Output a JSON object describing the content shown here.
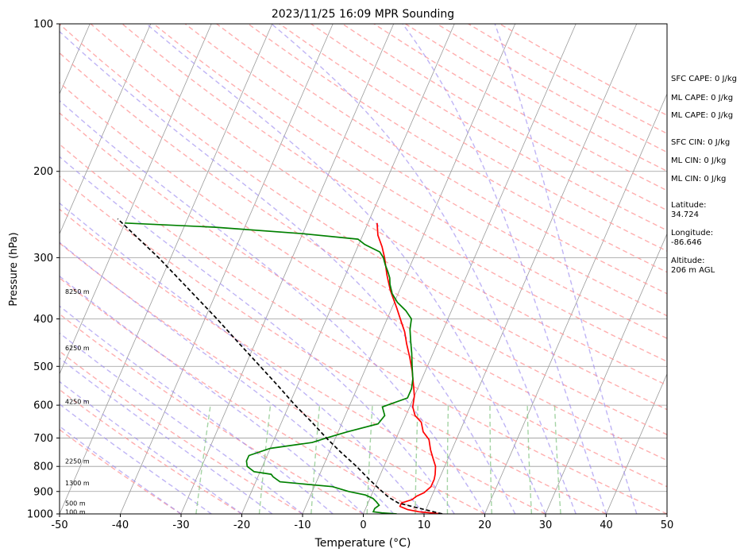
{
  "chart_data": {
    "type": "skew-t sounding",
    "title": "2023/11/25 16:09 MPR Sounding",
    "xlabel": "Temperature (°C)",
    "ylabel": "Pressure (hPa)",
    "xlim": [
      -50,
      50
    ],
    "ylim": [
      1000,
      100
    ],
    "y_scale": "log",
    "x_ticks": [
      "-50",
      "-40",
      "-30",
      "-20",
      "-10",
      "0",
      "10",
      "20",
      "30",
      "40",
      "50"
    ],
    "y_ticks": [
      "100",
      "200",
      "300",
      "400",
      "500",
      "600",
      "700",
      "800",
      "900",
      "1000"
    ],
    "grid": true,
    "colors": {
      "temperature": "#ff0000",
      "dewpoint": "#008000",
      "parcel": "#000000",
      "dry_adiabats": "#ff9a9a",
      "moist_adiabats": "#9c8cf0",
      "mixing_ratio": "#8fc98f",
      "isotherms": "#9a9a9a"
    },
    "height_labels": [
      {
        "text": "8250 m",
        "p": 352
      },
      {
        "text": "6250 m",
        "p": 458
      },
      {
        "text": "4250 m",
        "p": 590
      },
      {
        "text": "2250 m",
        "p": 780
      },
      {
        "text": "1300 m",
        "p": 865
      },
      {
        "text": "500 m",
        "p": 950
      },
      {
        "text": "100 m",
        "p": 990
      }
    ],
    "series": [
      {
        "key": "temperature",
        "points": [
          [
            1000,
            13
          ],
          [
            990,
            9
          ],
          [
            980,
            7
          ],
          [
            965,
            5.5
          ],
          [
            950,
            5.5
          ],
          [
            935,
            7
          ],
          [
            920,
            7.5
          ],
          [
            905,
            8.5
          ],
          [
            880,
            9.2
          ],
          [
            850,
            9.2
          ],
          [
            830,
            9
          ],
          [
            800,
            8.5
          ],
          [
            770,
            7.5
          ],
          [
            740,
            6.5
          ],
          [
            705,
            5.5
          ],
          [
            680,
            4
          ],
          [
            650,
            3
          ],
          [
            630,
            1.5
          ],
          [
            605,
            0.5
          ],
          [
            575,
            0
          ],
          [
            550,
            -0.8
          ],
          [
            530,
            -1.5
          ],
          [
            510,
            -2.2
          ],
          [
            480,
            -3.5
          ],
          [
            450,
            -5
          ],
          [
            425,
            -6.2
          ],
          [
            405,
            -7.5
          ],
          [
            380,
            -9.2
          ],
          [
            350,
            -11.5
          ],
          [
            325,
            -13.2
          ],
          [
            300,
            -14.8
          ],
          [
            285,
            -16
          ],
          [
            270,
            -17.5
          ],
          [
            255,
            -18.5
          ]
        ]
      },
      {
        "key": "dewpoint",
        "points": [
          [
            1000,
            5.5
          ],
          [
            995,
            3
          ],
          [
            990,
            1.5
          ],
          [
            975,
            1.5
          ],
          [
            960,
            2
          ],
          [
            945,
            1.3
          ],
          [
            930,
            0.5
          ],
          [
            915,
            -1
          ],
          [
            900,
            -4
          ],
          [
            880,
            -7
          ],
          [
            860,
            -16
          ],
          [
            840,
            -17.5
          ],
          [
            830,
            -18
          ],
          [
            820,
            -21
          ],
          [
            800,
            -22.5
          ],
          [
            780,
            -23
          ],
          [
            760,
            -23
          ],
          [
            735,
            -20
          ],
          [
            715,
            -13.5
          ],
          [
            700,
            -11.5
          ],
          [
            680,
            -8.5
          ],
          [
            655,
            -4
          ],
          [
            630,
            -3.5
          ],
          [
            605,
            -4.5
          ],
          [
            580,
            -1
          ],
          [
            555,
            -1
          ],
          [
            530,
            -1.5
          ],
          [
            500,
            -2.5
          ],
          [
            470,
            -3.5
          ],
          [
            445,
            -4.5
          ],
          [
            420,
            -5.5
          ],
          [
            400,
            -6
          ],
          [
            385,
            -7.5
          ],
          [
            370,
            -9.5
          ],
          [
            355,
            -11
          ],
          [
            340,
            -12
          ],
          [
            330,
            -12.5
          ],
          [
            320,
            -13.3
          ],
          [
            310,
            -14.2
          ],
          [
            300,
            -15
          ],
          [
            292,
            -16
          ],
          [
            287,
            -17.5
          ],
          [
            282,
            -19
          ],
          [
            275,
            -20.5
          ],
          [
            268,
            -30
          ],
          [
            260,
            -45
          ],
          [
            255,
            -60
          ]
        ]
      },
      {
        "key": "parcel",
        "points": [
          [
            1000,
            13
          ],
          [
            975,
            9
          ],
          [
            950,
            5
          ],
          [
            925,
            3
          ],
          [
            900,
            1.5
          ],
          [
            875,
            0
          ],
          [
            850,
            -1.5
          ],
          [
            800,
            -4.5
          ],
          [
            750,
            -8
          ],
          [
            700,
            -11.5
          ],
          [
            650,
            -15
          ],
          [
            600,
            -19
          ],
          [
            550,
            -23
          ],
          [
            500,
            -27.5
          ],
          [
            450,
            -32.5
          ],
          [
            400,
            -38
          ],
          [
            350,
            -44.5
          ],
          [
            300,
            -52
          ],
          [
            250,
            -61.5
          ]
        ]
      }
    ],
    "indices": [
      {
        "label": "SFC CAPE: 0 J/kg"
      },
      {
        "label": "ML CAPE: 0 J/kg"
      },
      {
        "label": "ML CAPE: 0 J/kg"
      },
      {
        "label": "SFC CIN: 0 J/kg"
      },
      {
        "label": "ML CIN: 0 J/kg"
      },
      {
        "label": "ML CIN: 0 J/kg"
      }
    ],
    "location": {
      "lat_label": "Latitude:",
      "lat": "34.724",
      "lon_label": "Longitude:",
      "lon": "-86.646",
      "alt_label": "Altitude:",
      "alt": "206 m AGL"
    }
  }
}
